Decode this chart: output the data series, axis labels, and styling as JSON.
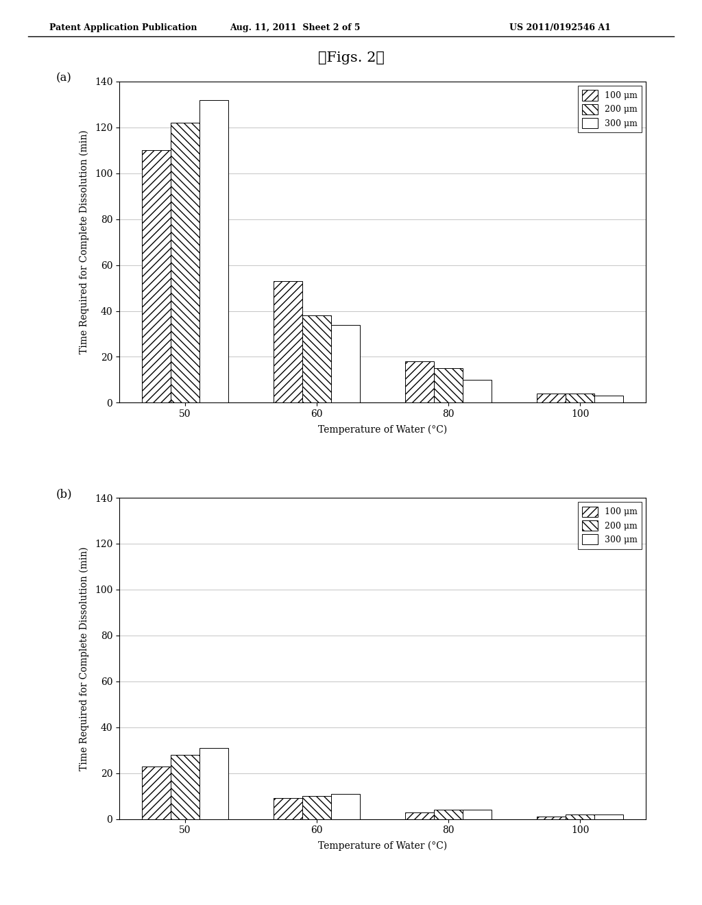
{
  "title": "【Figs. 2】",
  "header_left": "Patent Application Publication",
  "header_center": "Aug. 11, 2011  Sheet 2 of 5",
  "header_right": "US 2011/0192546 A1",
  "label_a": "(a)",
  "label_b": "(b)",
  "xlabel": "Temperature of Water (°C)",
  "ylabel": "Time Required for Complete Dissolution (min)",
  "temperatures": [
    50,
    60,
    80,
    100
  ],
  "legend_labels": [
    "100 μm",
    "200 μm",
    "300 μm"
  ],
  "chart_a": {
    "100um": [
      110,
      53,
      18,
      4
    ],
    "200um": [
      122,
      38,
      15,
      4
    ],
    "300um": [
      132,
      34,
      10,
      3
    ]
  },
  "chart_b": {
    "100um": [
      23,
      9,
      3,
      1
    ],
    "200um": [
      28,
      10,
      4,
      2
    ],
    "300um": [
      31,
      11,
      4,
      2
    ]
  },
  "ylim": [
    0,
    140
  ],
  "yticks": [
    0,
    20,
    40,
    60,
    80,
    100,
    120,
    140
  ],
  "bar_width": 0.22,
  "hatch_100": "///",
  "hatch_200": "\\\\\\",
  "hatch_300": "",
  "facecolor": "white",
  "edgecolor": "black",
  "bg_color": "white",
  "grid_color": "#bbbbbb",
  "title_fontsize": 15,
  "label_fontsize": 10,
  "tick_fontsize": 10,
  "header_fontsize": 9,
  "legend_fontsize": 9
}
